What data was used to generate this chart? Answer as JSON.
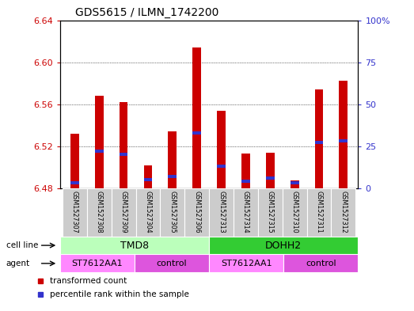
{
  "title": "GDS5615 / ILMN_1742200",
  "samples": [
    "GSM1527307",
    "GSM1527308",
    "GSM1527309",
    "GSM1527304",
    "GSM1527305",
    "GSM1527306",
    "GSM1527313",
    "GSM1527314",
    "GSM1527315",
    "GSM1527310",
    "GSM1527311",
    "GSM1527312"
  ],
  "transformed_count": [
    6.532,
    6.568,
    6.562,
    6.502,
    6.534,
    6.614,
    6.554,
    6.513,
    6.514,
    6.487,
    6.574,
    6.582
  ],
  "percentile_rank": [
    3,
    22,
    20,
    5,
    7,
    33,
    13,
    4,
    6,
    3,
    27,
    28
  ],
  "ymin": 6.48,
  "ymax": 6.64,
  "yticks": [
    6.48,
    6.52,
    6.56,
    6.6,
    6.64
  ],
  "right_yticks": [
    0,
    25,
    50,
    75,
    100
  ],
  "right_ytick_labels": [
    "0",
    "25",
    "50",
    "75",
    "100%"
  ],
  "bar_color": "#cc0000",
  "blue_color": "#3333cc",
  "cell_line_groups": [
    {
      "label": "TMD8",
      "start": 0,
      "end": 6,
      "color": "#bbffbb"
    },
    {
      "label": "DOHH2",
      "start": 6,
      "end": 12,
      "color": "#33cc33"
    }
  ],
  "agent_groups": [
    {
      "label": "ST7612AA1",
      "start": 0,
      "end": 3,
      "color": "#ff88ff"
    },
    {
      "label": "control",
      "start": 3,
      "end": 6,
      "color": "#dd55dd"
    },
    {
      "label": "ST7612AA1",
      "start": 6,
      "end": 9,
      "color": "#ff88ff"
    },
    {
      "label": "control",
      "start": 9,
      "end": 12,
      "color": "#dd55dd"
    }
  ],
  "legend_items": [
    {
      "label": "transformed count",
      "color": "#cc0000"
    },
    {
      "label": "percentile rank within the sample",
      "color": "#3333cc"
    }
  ],
  "bar_width": 0.35,
  "grid_color": "black",
  "tick_color_left": "#cc0000",
  "tick_color_right": "#3333cc",
  "sample_bg_color": "#cccccc"
}
